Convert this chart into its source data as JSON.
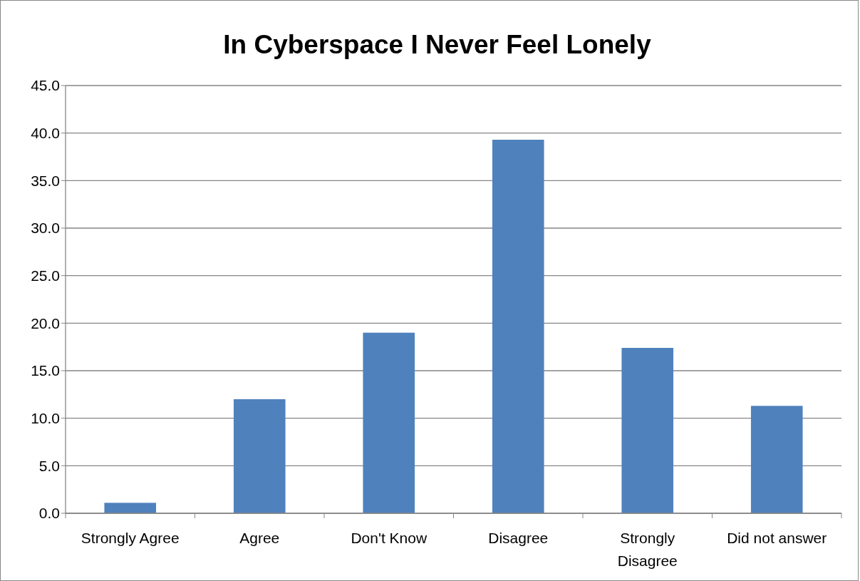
{
  "chart_data": {
    "type": "bar",
    "title": "In Cyberspace I Never Feel Lonely",
    "categories": [
      "Strongly Agree",
      "Agree",
      "Don't Know",
      "Disagree",
      "Strongly Disagree",
      "Did not answer"
    ],
    "values": [
      1.1,
      12.0,
      19.0,
      39.3,
      17.4,
      11.3
    ],
    "color": "#4f81bd",
    "ylim": [
      0,
      45
    ],
    "yticks": [
      {
        "value": 0,
        "label": "0.0"
      },
      {
        "value": 5,
        "label": "5.0"
      },
      {
        "value": 10,
        "label": "10.0"
      },
      {
        "value": 15,
        "label": "15.0"
      },
      {
        "value": 20,
        "label": "20.0"
      },
      {
        "value": 25,
        "label": "25.0"
      },
      {
        "value": 30,
        "label": "30.0"
      },
      {
        "value": 35,
        "label": "35.0"
      },
      {
        "value": 40,
        "label": "40.0"
      },
      {
        "value": 45,
        "label": "45.0"
      }
    ],
    "grid": "y"
  }
}
